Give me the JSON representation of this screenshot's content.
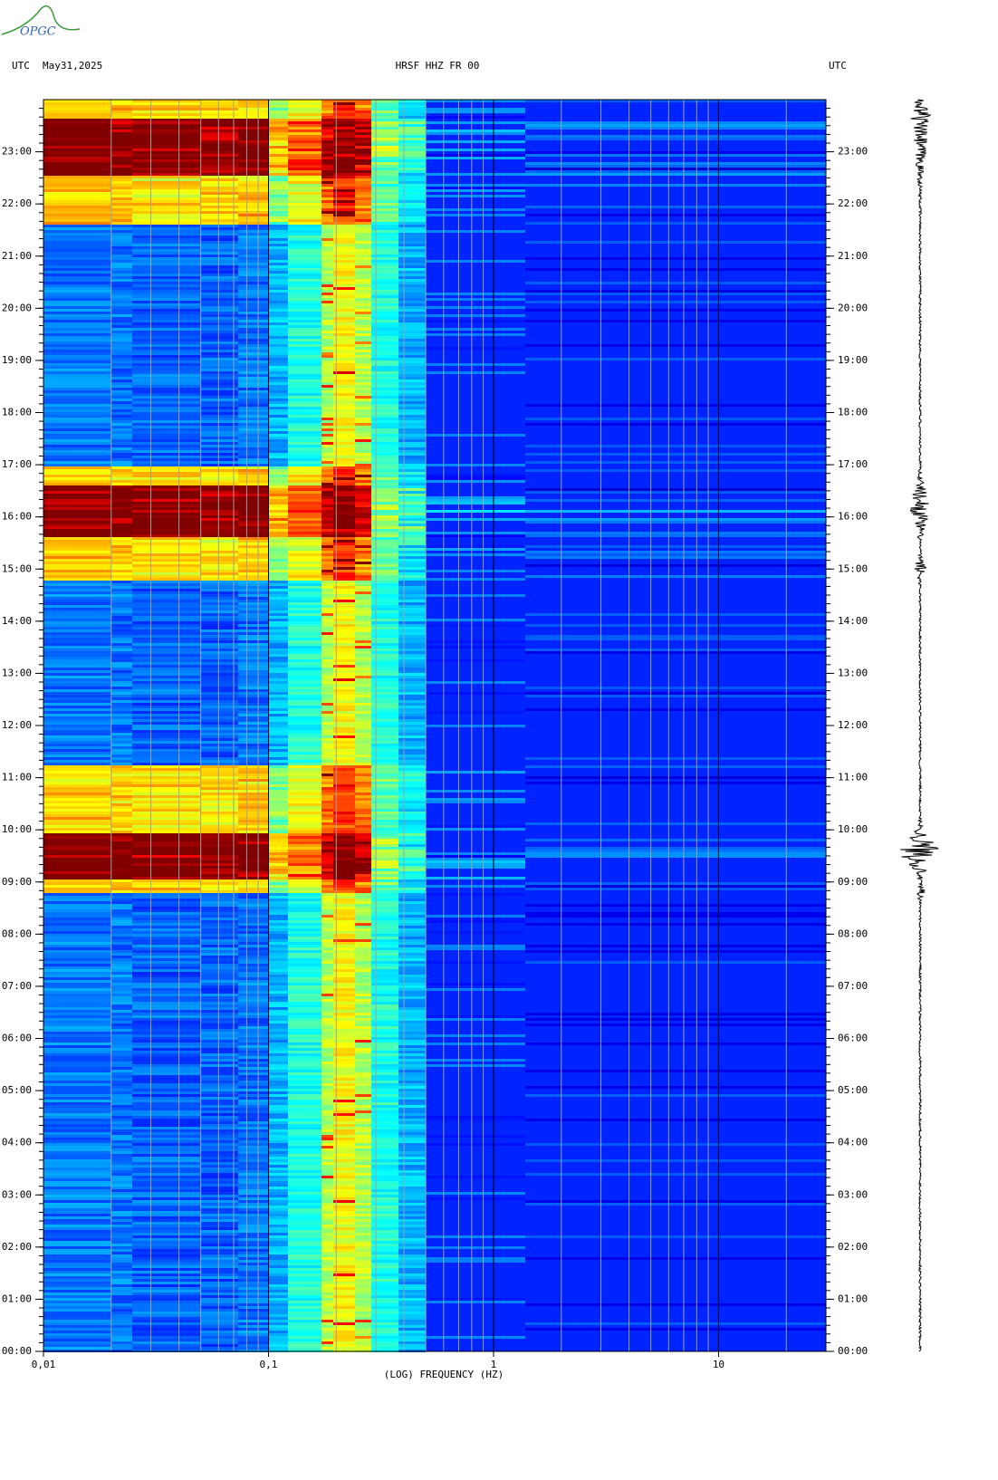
{
  "chart_data": {
    "type": "spectrogram",
    "logo": "OPGC",
    "left_label": "UTC",
    "date": "May31,2025",
    "title": "HRSF HHZ FR 00",
    "right_label": "UTC",
    "xlabel": "(LOG) FREQUENCY (HZ)",
    "xscale": "log",
    "xlim": [
      0.01,
      30
    ],
    "xticks": [
      {
        "value": 0.01,
        "label": "0,01"
      },
      {
        "value": 0.1,
        "label": "0,1"
      },
      1,
      10
    ],
    "ylim": [
      0,
      24
    ],
    "yticks": [
      {
        "value": 0,
        "label": "00:00"
      },
      {
        "value": 1,
        "label": "01:00"
      },
      {
        "value": 2,
        "label": "02:00"
      },
      {
        "value": 3,
        "label": "03:00"
      },
      {
        "value": 4,
        "label": "04:00"
      },
      {
        "value": 5,
        "label": "05:00"
      },
      {
        "value": 6,
        "label": "06:00"
      },
      {
        "value": 7,
        "label": "07:00"
      },
      {
        "value": 8,
        "label": "08:00"
      },
      {
        "value": 9,
        "label": "09:00"
      },
      {
        "value": 10,
        "label": "10:00"
      },
      {
        "value": 11,
        "label": "11:00"
      },
      {
        "value": 12,
        "label": "12:00"
      },
      {
        "value": 13,
        "label": "13:00"
      },
      {
        "value": 14,
        "label": "14:00"
      },
      {
        "value": 15,
        "label": "15:00"
      },
      {
        "value": 16,
        "label": "16:00"
      },
      {
        "value": 17,
        "label": "17:00"
      },
      {
        "value": 18,
        "label": "18:00"
      },
      {
        "value": 19,
        "label": "19:00"
      },
      {
        "value": 20,
        "label": "20:00"
      },
      {
        "value": 21,
        "label": "21:00"
      },
      {
        "value": 22,
        "label": "22:00"
      },
      {
        "value": 23,
        "label": "23:00"
      }
    ],
    "grid": true
  }
}
